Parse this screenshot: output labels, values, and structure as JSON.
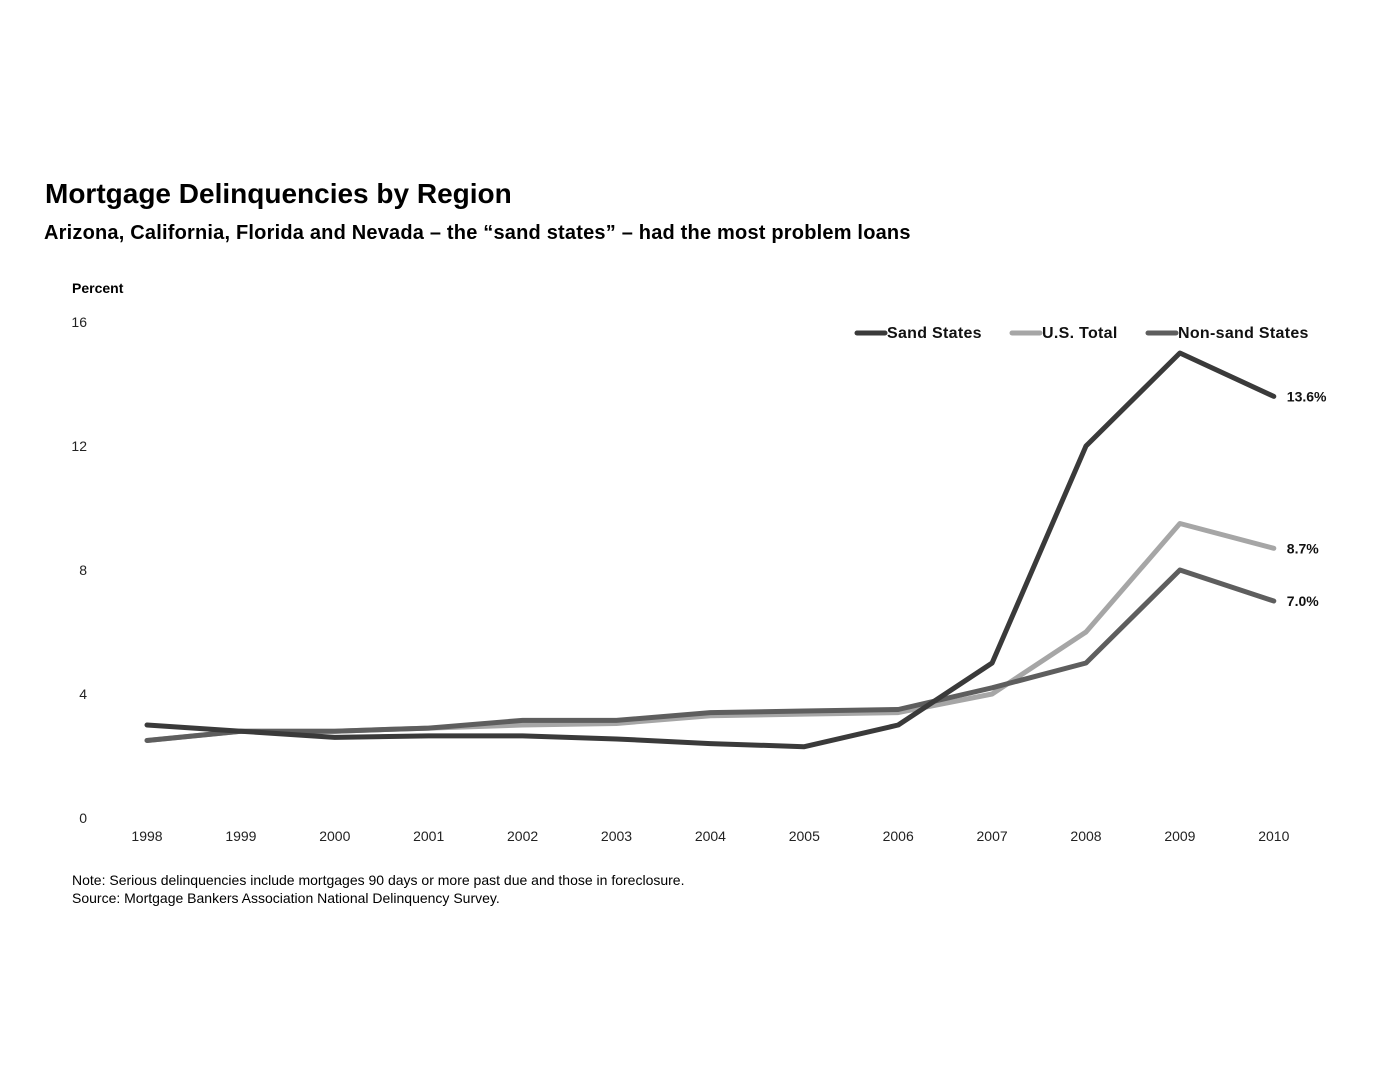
{
  "title": "Mortgage Delinquencies by Region",
  "subtitle": "Arizona, California, Florida and Nevada – the “sand states” – had the most problem loans",
  "note": "Note: Serious delinquencies include mortgages 90 days or more past due and those in foreclosure.",
  "source": "Source: Mortgage Bankers Association National Delinquency Survey.",
  "chart_data": {
    "type": "line",
    "title": "Mortgage Delinquencies by Region",
    "ylabel": "Percent",
    "xlabel": "",
    "ylim": [
      0,
      16
    ],
    "yticks": [
      0,
      4,
      8,
      12,
      16
    ],
    "grid": false,
    "legend_position": "top-right",
    "categories": [
      "1998",
      "1999",
      "2000",
      "2001",
      "2002",
      "2003",
      "2004",
      "2005",
      "2006",
      "2007",
      "2008",
      "2009",
      "2010"
    ],
    "series": [
      {
        "name": "Sand States",
        "color": "#3a3a3a",
        "values": [
          3.0,
          2.8,
          2.6,
          2.65,
          2.65,
          2.55,
          2.4,
          2.3,
          3.0,
          5.0,
          12.0,
          15.0,
          13.6
        ],
        "end_label": "13.6%"
      },
      {
        "name": "U.S. Total",
        "color": "#a6a6a6",
        "values": [
          2.5,
          2.8,
          2.8,
          2.9,
          3.0,
          3.05,
          3.3,
          3.35,
          3.4,
          4.0,
          6.0,
          9.5,
          8.7
        ],
        "end_label": "8.7%"
      },
      {
        "name": "Non-sand States",
        "color": "#5e5e5e",
        "values": [
          2.5,
          2.8,
          2.8,
          2.9,
          3.15,
          3.15,
          3.4,
          3.45,
          3.5,
          4.2,
          5.0,
          8.0,
          7.0
        ],
        "end_label": "7.0%"
      }
    ]
  }
}
